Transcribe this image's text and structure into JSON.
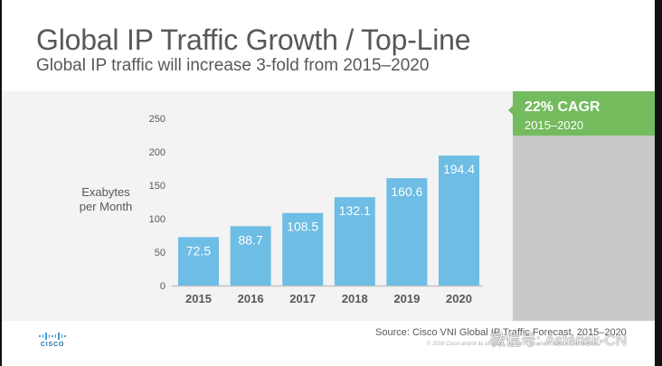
{
  "slide": {
    "title": "Global IP Traffic Growth / Top-Line",
    "subtitle": "Global IP traffic will increase 3-fold from 2015–2020",
    "callout": {
      "headline": "22% CAGR",
      "period": "2015–2020",
      "color": "#74bb5e"
    },
    "source": "Source: Cisco VNI Global IP Traffic Forecast, 2015–2020",
    "copyright": "© 2016  Cisco and/or its affiliates. All rights reserved.   Cisco Confidential        7",
    "watermark": "微信号: Asterisk-CN",
    "logo_text": "CISCO"
  },
  "chart_data": {
    "type": "bar",
    "title": "",
    "xlabel": "",
    "ylabel": "Exabytes per Month",
    "ylabel_lines": [
      "Exabytes",
      "per Month"
    ],
    "categories": [
      "2015",
      "2016",
      "2017",
      "2018",
      "2019",
      "2020"
    ],
    "values": [
      72.5,
      88.7,
      108.5,
      132.1,
      160.6,
      194.4
    ],
    "data_labels": [
      "72.5",
      "88.7",
      "108.5",
      "132.1",
      "160.6",
      "194.4"
    ],
    "ylim": [
      0,
      250
    ],
    "yticks": [
      0,
      50,
      100,
      150,
      200,
      250
    ],
    "grid": false,
    "legend": "none",
    "bar_color": "#6dbde5"
  }
}
